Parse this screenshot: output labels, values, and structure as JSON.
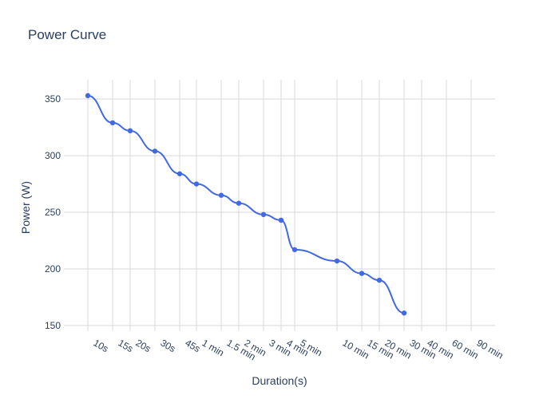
{
  "chart": {
    "title": "Power Curve",
    "xlabel": "Duration(s)",
    "ylabel": "Power (W)"
  },
  "colors": {
    "line": "#4169e1",
    "grid": "#d9d9d9",
    "text": "#2a3f5f"
  },
  "chart_data": {
    "type": "line",
    "title": "Power Curve",
    "xlabel": "Duration(s)",
    "ylabel": "Power (W)",
    "x_scale": "log",
    "x_ticks": [
      {
        "seconds": 10,
        "label": "10s"
      },
      {
        "seconds": 15,
        "label": "15s"
      },
      {
        "seconds": 20,
        "label": "20s"
      },
      {
        "seconds": 30,
        "label": "30s"
      },
      {
        "seconds": 45,
        "label": "45s"
      },
      {
        "seconds": 60,
        "label": "1 min"
      },
      {
        "seconds": 90,
        "label": "1.5 min"
      },
      {
        "seconds": 120,
        "label": "2 min"
      },
      {
        "seconds": 180,
        "label": "3 min"
      },
      {
        "seconds": 240,
        "label": "4 min"
      },
      {
        "seconds": 300,
        "label": "5 min"
      },
      {
        "seconds": 600,
        "label": "10 min"
      },
      {
        "seconds": 900,
        "label": "15 min"
      },
      {
        "seconds": 1200,
        "label": "20 min"
      },
      {
        "seconds": 1800,
        "label": "30 min"
      },
      {
        "seconds": 2400,
        "label": "40 min"
      },
      {
        "seconds": 3600,
        "label": "60 min"
      },
      {
        "seconds": 5400,
        "label": "90 min"
      }
    ],
    "y_ticks": [
      150,
      200,
      250,
      300,
      350
    ],
    "ylim": [
      145,
      367
    ],
    "grid": true,
    "series": [
      {
        "x": [
          10,
          15,
          20,
          30,
          45,
          60,
          90,
          120,
          180,
          240,
          300,
          600,
          900,
          1200,
          1800
        ],
        "values": [
          353,
          329,
          322,
          304,
          284,
          275,
          265,
          258,
          248,
          243,
          217,
          207,
          196,
          190,
          161
        ]
      }
    ]
  }
}
